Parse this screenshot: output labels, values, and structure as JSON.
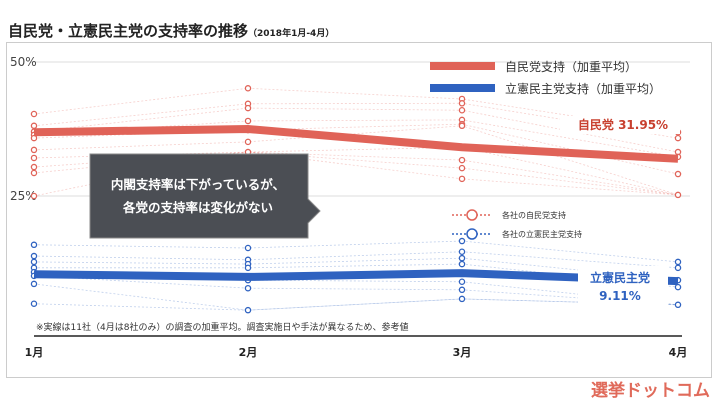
{
  "title": "自民党・立憲民主党の支持率の推移",
  "subtitle": "（2018年1月-4月）",
  "logo": "選挙ドットコム",
  "chart_data": {
    "type": "line",
    "categories": [
      "1月",
      "2月",
      "3月",
      "4月"
    ],
    "y_ticks": [
      "50%",
      "25%"
    ],
    "ylim": [
      0,
      50
    ],
    "grid": true,
    "series": [
      {
        "name": "自民党支持（加重平均）",
        "color": "#e06358",
        "values": [
          36.9,
          37.5,
          34.1,
          31.95
        ]
      },
      {
        "name": "立憲民主党支持（加重平均）",
        "color": "#2f62c0",
        "values": [
          10.4,
          9.9,
          10.6,
          9.11
        ]
      }
    ],
    "company_points": [
      {
        "name": "各社の自民党支持",
        "color": "#e06358",
        "values": [
          [
            40.3,
            38.1,
            37.0,
            36.4,
            35.8,
            33.6,
            32.1,
            30.4,
            29.3,
            25.0
          ],
          [
            45.1,
            42.2,
            41.4,
            39.0,
            37.3,
            35.1,
            33.2
          ],
          [
            43.1,
            42.3,
            41.0,
            39.2,
            38.4,
            38.1,
            34.1,
            31.7,
            30.2,
            28.2
          ],
          [
            36.9,
            35.8,
            33.2,
            32.3,
            29.1,
            25.2
          ]
        ]
      },
      {
        "name": "各社の立憲民主党支持",
        "color": "#2f62c0",
        "values": [
          [
            15.9,
            13.8,
            12.7,
            11.6,
            10.8,
            10.1,
            8.6,
            4.9
          ],
          [
            15.3,
            13.1,
            12.3,
            11.6,
            9.3,
            7.8,
            3.7
          ],
          [
            16.6,
            14.6,
            13.4,
            12.3,
            9.0,
            7.5,
            5.8
          ],
          [
            12.7,
            11.6,
            9.3,
            8.0,
            4.7
          ]
        ]
      }
    ],
    "annotations": {
      "ldp_label": "自民党 31.95%",
      "cdp_label": "立憲民主党",
      "cdp_value": "9.11%",
      "callout_1": "内閣支持率は下がっているが、",
      "callout_2": "各党の支持率は変化がない",
      "note": "※実線は11社（4月は8社のみ）の調査の加重平均。調査実施日や手法が異なるため、参考値"
    },
    "legend_placement": "top-right"
  }
}
